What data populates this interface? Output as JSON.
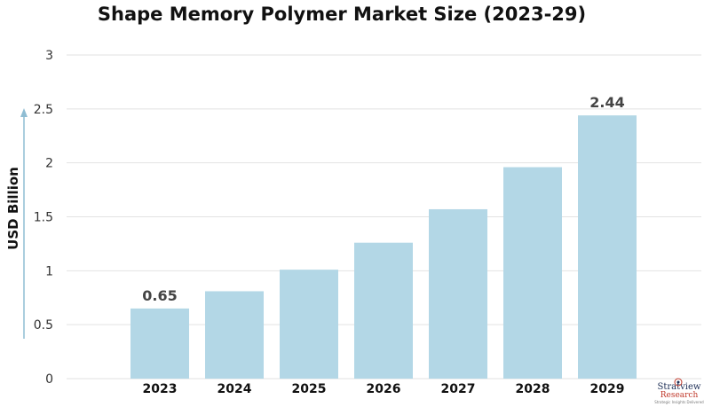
{
  "chart_data": {
    "type": "bar",
    "title": "Shape Memory Polymer Market Size (2023-29)",
    "ylabel": "USD Billion",
    "xlabel": "",
    "categories": [
      "2023",
      "2024",
      "2025",
      "2026",
      "2027",
      "2028",
      "2029"
    ],
    "values": [
      0.65,
      0.81,
      1.01,
      1.26,
      1.57,
      1.96,
      2.44
    ],
    "data_labels": {
      "2023": "0.65",
      "2029": "2.44"
    },
    "ylim": [
      0,
      3
    ],
    "yticks": [
      "0",
      "0.5",
      "1",
      "1.5",
      "2",
      "2.5",
      "3"
    ],
    "ytick_values": [
      0,
      0.5,
      1,
      1.5,
      2,
      2.5,
      3
    ],
    "grid": true,
    "colors": {
      "bar": "#b3d7e6",
      "grid": "#e2e2e2",
      "axis_arrow": "#8fbdd3"
    }
  },
  "logo": {
    "brand_line1": "Stratview",
    "brand_line2": "Research",
    "tagline": "Strategic Insights Delivered",
    "icon": "target-icon"
  }
}
